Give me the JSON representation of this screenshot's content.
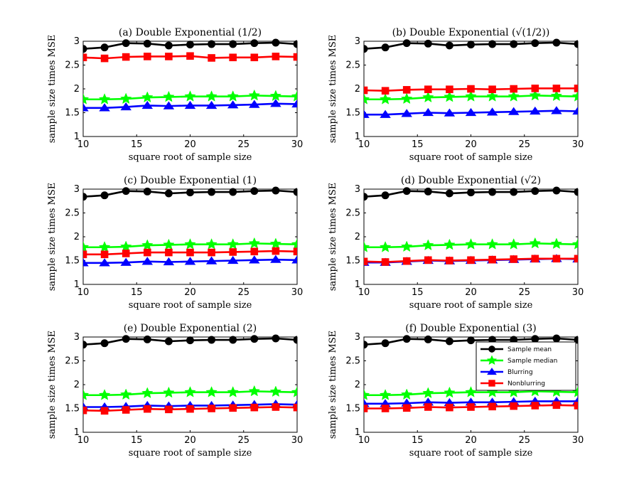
{
  "chart_data": {
    "type": "line",
    "x": [
      10,
      12,
      14,
      16,
      18,
      20,
      22,
      24,
      26,
      28,
      30
    ],
    "xlim": [
      10,
      30
    ],
    "ylim": [
      1,
      3
    ],
    "xticks": [
      "10",
      "15",
      "20",
      "25",
      "30"
    ],
    "yticks": [
      "1",
      "1.5",
      "2",
      "2.5",
      "3"
    ],
    "xlabel": "square root of sample size",
    "ylabel": "sample size times MSE",
    "series_styles": [
      {
        "name": "Sample mean",
        "color": "#000000",
        "marker": "circle"
      },
      {
        "name": "Sample median",
        "color": "#00ff00",
        "marker": "star"
      },
      {
        "name": "Blurring",
        "color": "#0000ff",
        "marker": "triangle"
      },
      {
        "name": "Nonblurring",
        "color": "#ff0000",
        "marker": "square"
      }
    ],
    "panels": [
      {
        "title": "(a) Double Exponential (1/2)",
        "series": [
          {
            "name": "Sample mean",
            "values": [
              2.84,
              2.87,
              2.96,
              2.95,
              2.91,
              2.93,
              2.94,
              2.94,
              2.96,
              2.97,
              2.94
            ]
          },
          {
            "name": "Sample median",
            "values": [
              1.78,
              1.78,
              1.79,
              1.82,
              1.83,
              1.84,
              1.84,
              1.84,
              1.86,
              1.85,
              1.84
            ]
          },
          {
            "name": "Blurring",
            "values": [
              1.6,
              1.6,
              1.62,
              1.65,
              1.64,
              1.65,
              1.65,
              1.66,
              1.67,
              1.69,
              1.68
            ]
          },
          {
            "name": "Nonblurring",
            "values": [
              2.66,
              2.64,
              2.67,
              2.68,
              2.68,
              2.69,
              2.65,
              2.66,
              2.66,
              2.68,
              2.67
            ]
          }
        ]
      },
      {
        "title": "(b) Double Exponential (√(1/2))",
        "series": [
          {
            "name": "Sample mean",
            "values": [
              2.84,
              2.87,
              2.96,
              2.95,
              2.91,
              2.93,
              2.94,
              2.94,
              2.96,
              2.97,
              2.94
            ]
          },
          {
            "name": "Sample median",
            "values": [
              1.78,
              1.78,
              1.79,
              1.82,
              1.83,
              1.84,
              1.84,
              1.84,
              1.86,
              1.85,
              1.84
            ]
          },
          {
            "name": "Blurring",
            "values": [
              1.46,
              1.46,
              1.48,
              1.5,
              1.49,
              1.5,
              1.51,
              1.52,
              1.53,
              1.54,
              1.53
            ]
          },
          {
            "name": "Nonblurring",
            "values": [
              1.97,
              1.96,
              1.98,
              1.99,
              1.99,
              2.0,
              1.99,
              2.0,
              2.01,
              2.01,
              2.01
            ]
          }
        ]
      },
      {
        "title": "(c) Double Exponential (1)",
        "series": [
          {
            "name": "Sample mean",
            "values": [
              2.84,
              2.87,
              2.96,
              2.95,
              2.91,
              2.93,
              2.94,
              2.94,
              2.96,
              2.97,
              2.94
            ]
          },
          {
            "name": "Sample median",
            "values": [
              1.78,
              1.78,
              1.79,
              1.82,
              1.83,
              1.84,
              1.84,
              1.84,
              1.86,
              1.85,
              1.84
            ]
          },
          {
            "name": "Blurring",
            "values": [
              1.45,
              1.45,
              1.46,
              1.48,
              1.47,
              1.48,
              1.49,
              1.5,
              1.51,
              1.52,
              1.51
            ]
          },
          {
            "name": "Nonblurring",
            "values": [
              1.63,
              1.63,
              1.65,
              1.67,
              1.67,
              1.67,
              1.67,
              1.68,
              1.69,
              1.7,
              1.69
            ]
          }
        ]
      },
      {
        "title": "(d) Double Exponential (√2)",
        "series": [
          {
            "name": "Sample mean",
            "values": [
              2.84,
              2.87,
              2.96,
              2.95,
              2.91,
              2.93,
              2.94,
              2.94,
              2.96,
              2.97,
              2.94
            ]
          },
          {
            "name": "Sample median",
            "values": [
              1.78,
              1.78,
              1.79,
              1.82,
              1.83,
              1.84,
              1.84,
              1.84,
              1.86,
              1.85,
              1.84
            ]
          },
          {
            "name": "Blurring",
            "values": [
              1.46,
              1.46,
              1.48,
              1.5,
              1.49,
              1.5,
              1.51,
              1.52,
              1.53,
              1.54,
              1.53
            ]
          },
          {
            "name": "Nonblurring",
            "values": [
              1.48,
              1.47,
              1.49,
              1.51,
              1.5,
              1.51,
              1.52,
              1.53,
              1.54,
              1.54,
              1.54
            ]
          }
        ]
      },
      {
        "title": "(e) Double Exponential (2)",
        "series": [
          {
            "name": "Sample mean",
            "values": [
              2.84,
              2.87,
              2.96,
              2.95,
              2.91,
              2.93,
              2.94,
              2.94,
              2.96,
              2.97,
              2.94
            ]
          },
          {
            "name": "Sample median",
            "values": [
              1.78,
              1.78,
              1.79,
              1.82,
              1.83,
              1.84,
              1.84,
              1.84,
              1.86,
              1.85,
              1.84
            ]
          },
          {
            "name": "Blurring",
            "values": [
              1.53,
              1.53,
              1.54,
              1.56,
              1.55,
              1.56,
              1.56,
              1.57,
              1.58,
              1.59,
              1.58
            ]
          },
          {
            "name": "Nonblurring",
            "values": [
              1.46,
              1.45,
              1.47,
              1.49,
              1.48,
              1.49,
              1.5,
              1.51,
              1.52,
              1.53,
              1.52
            ]
          }
        ]
      },
      {
        "title": "(f) Double Exponential (3)",
        "legend": [
          "Sample mean",
          "Sample median",
          "Blurring",
          "Nonblurring"
        ],
        "series": [
          {
            "name": "Sample mean",
            "values": [
              2.84,
              2.87,
              2.96,
              2.95,
              2.91,
              2.93,
              2.94,
              2.94,
              2.96,
              2.97,
              2.94
            ]
          },
          {
            "name": "Sample median",
            "values": [
              1.78,
              1.78,
              1.79,
              1.82,
              1.83,
              1.84,
              1.84,
              1.84,
              1.86,
              1.85,
              1.84
            ]
          },
          {
            "name": "Blurring",
            "values": [
              1.6,
              1.6,
              1.61,
              1.63,
              1.62,
              1.63,
              1.63,
              1.64,
              1.65,
              1.65,
              1.65
            ]
          },
          {
            "name": "Nonblurring",
            "values": [
              1.5,
              1.5,
              1.51,
              1.53,
              1.52,
              1.53,
              1.54,
              1.55,
              1.56,
              1.57,
              1.56
            ]
          }
        ]
      }
    ]
  }
}
